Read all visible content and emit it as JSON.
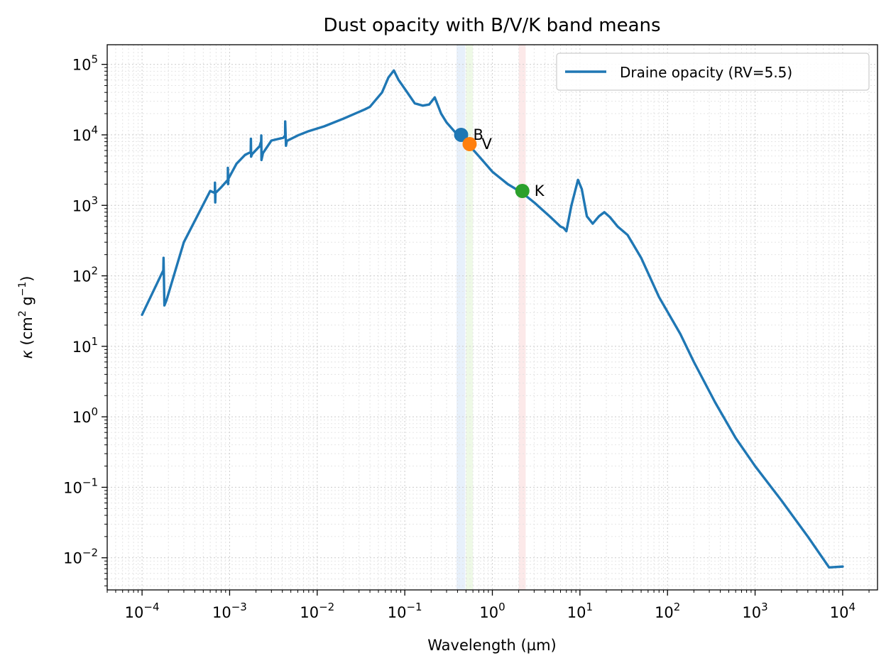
{
  "chart_data": {
    "type": "line",
    "title": "Dust opacity with B/V/K band means",
    "xlabel": "Wavelength (µm)",
    "ylabel_main": "κ (cm",
    "ylabel_parts": {
      "kappa": "κ",
      "open": " (cm",
      "exp2": "2",
      "g": " g",
      "expm1": "−1",
      "close": ")"
    },
    "x_scale": "log",
    "y_scale": "log",
    "xlim": [
      4e-05,
      25000
    ],
    "ylim": [
      0.0035,
      190000
    ],
    "x_ticks": [
      {
        "value": 0.0001,
        "base": "10",
        "exp": "−4"
      },
      {
        "value": 0.001,
        "base": "10",
        "exp": "−3"
      },
      {
        "value": 0.01,
        "base": "10",
        "exp": "−2"
      },
      {
        "value": 0.1,
        "base": "10",
        "exp": "−1"
      },
      {
        "value": 1,
        "base": "10",
        "exp": "0"
      },
      {
        "value": 10,
        "base": "10",
        "exp": "1"
      },
      {
        "value": 100,
        "base": "10",
        "exp": "2"
      },
      {
        "value": 1000,
        "base": "10",
        "exp": "3"
      },
      {
        "value": 10000,
        "base": "10",
        "exp": "4"
      }
    ],
    "y_ticks": [
      {
        "value": 0.01,
        "base": "10",
        "exp": "−2"
      },
      {
        "value": 0.1,
        "base": "10",
        "exp": "−1"
      },
      {
        "value": 1,
        "base": "10",
        "exp": "0"
      },
      {
        "value": 10,
        "base": "10",
        "exp": "1"
      },
      {
        "value": 100,
        "base": "10",
        "exp": "2"
      },
      {
        "value": 1000,
        "base": "10",
        "exp": "3"
      },
      {
        "value": 10000,
        "base": "10",
        "exp": "4"
      },
      {
        "value": 100000,
        "base": "10",
        "exp": "5"
      }
    ],
    "grid": "major and minor, dotted",
    "legend": {
      "placement": "top-right",
      "entries": [
        "Draine opacity (RV=5.5)"
      ]
    },
    "series": [
      {
        "name": "Draine opacity (RV=5.5)",
        "color": "#1f77b4",
        "x": [
          0.0001,
          0.000175,
          0.000176,
          0.00018,
          0.00019,
          0.0003,
          0.0006,
          0.000678,
          0.00068,
          0.000685,
          0.00069,
          0.0008,
          0.000954,
          0.000955,
          0.00096,
          0.00097,
          0.0012,
          0.0015,
          0.00174,
          0.00175,
          0.00176,
          0.0018,
          0.0022,
          0.00229,
          0.0023,
          0.00231,
          0.0024,
          0.003,
          0.0041,
          0.0043,
          0.00431,
          0.0044,
          0.0045,
          0.006,
          0.008,
          0.012,
          0.02,
          0.035,
          0.04,
          0.055,
          0.065,
          0.075,
          0.085,
          0.1,
          0.13,
          0.16,
          0.19,
          0.22,
          0.26,
          0.3,
          0.4,
          0.44,
          0.55,
          0.7,
          1.0,
          1.5,
          2.2,
          3.0,
          4.5,
          6.0,
          6.5,
          7.0,
          8.0,
          9.5,
          10.5,
          12.0,
          14.0,
          16.5,
          19.0,
          22.0,
          27.0,
          35.0,
          50.0,
          80.0,
          140.0,
          200.0,
          350.0,
          600.0,
          1000.0,
          2000.0,
          4000.0,
          7000.0,
          10000.0
        ],
        "y": [
          28,
          120,
          180,
          38,
          45,
          300,
          1600,
          1500,
          2100,
          1100,
          1500,
          1800,
          2300,
          3400,
          2000,
          2400,
          3900,
          5200,
          5700,
          8800,
          4900,
          5300,
          6900,
          8100,
          9800,
          4400,
          5500,
          8300,
          9100,
          9800,
          15500,
          7000,
          8200,
          9800,
          11300,
          13200,
          17000,
          23000,
          25000,
          40000,
          65000,
          82000,
          60000,
          45000,
          28000,
          26000,
          27000,
          34000,
          20000,
          15000,
          10000,
          9000,
          7000,
          5000,
          3000,
          2000,
          1500,
          1100,
          700,
          500,
          480,
          430,
          1000,
          2300,
          1700,
          700,
          550,
          700,
          800,
          680,
          500,
          380,
          180,
          50,
          15,
          6,
          1.6,
          0.5,
          0.2,
          0.065,
          0.02,
          0.0073,
          0.0075
        ]
      }
    ],
    "band_points": [
      {
        "label": "B",
        "x": 0.44,
        "y": 10000,
        "color": "#1f77b4"
      },
      {
        "label": "V",
        "x": 0.55,
        "y": 7400,
        "color": "#ff7f0e"
      },
      {
        "label": "K",
        "x": 2.2,
        "y": 1600,
        "color": "#2ca02c"
      }
    ],
    "bands": [
      {
        "name": "B",
        "xmin": 0.39,
        "xmax": 0.49,
        "color": "#b9d3f4"
      },
      {
        "name": "V",
        "xmin": 0.5,
        "xmax": 0.6,
        "color": "#cdeeb8"
      },
      {
        "name": "K",
        "xmin": 2.0,
        "xmax": 2.4,
        "color": "#f6c0c0"
      }
    ]
  }
}
